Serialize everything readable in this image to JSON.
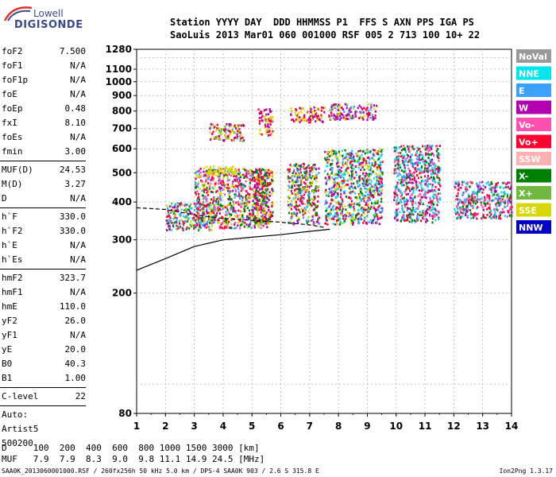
{
  "logo": {
    "line1": "Lowell",
    "line2": "DIGISONDE"
  },
  "header": {
    "line1": "Station YYYY DAY  DDD HHMMSS P1  FFS S AXN PPS IGA PS",
    "line2": "SaoLuis 2013 Mar01 060 001000 RSF 005 2 713 100 10+ 22"
  },
  "params": [
    {
      "label": "foF2",
      "value": "7.500"
    },
    {
      "label": "foF1",
      "value": "N/A"
    },
    {
      "label": "foF1p",
      "value": "N/A"
    },
    {
      "label": "foE",
      "value": "N/A"
    },
    {
      "label": "foEp",
      "value": "0.48"
    },
    {
      "label": "fxI",
      "value": "8.10"
    },
    {
      "label": "foEs",
      "value": "N/A"
    },
    {
      "label": "fmin",
      "value": "3.00"
    },
    {
      "sep": true
    },
    {
      "label": "MUF(D)",
      "value": "24.53"
    },
    {
      "label": "M(D)",
      "value": "3.27"
    },
    {
      "label": "D",
      "value": "N/A"
    },
    {
      "sep": true
    },
    {
      "label": "h`F",
      "value": "330.0"
    },
    {
      "label": "h`F2",
      "value": "330.0"
    },
    {
      "label": "h`E",
      "value": "N/A"
    },
    {
      "label": "h`Es",
      "value": "N/A"
    },
    {
      "sep": true
    },
    {
      "label": "hmF2",
      "value": "323.7"
    },
    {
      "label": "hmF1",
      "value": "N/A"
    },
    {
      "label": "hmE",
      "value": "110.0"
    },
    {
      "label": "yF2",
      "value": "26.0"
    },
    {
      "label": "yF1",
      "value": "N/A"
    },
    {
      "label": "yE",
      "value": "20.0"
    },
    {
      "label": "B0",
      "value": "40.3"
    },
    {
      "label": "B1",
      "value": "1.00"
    },
    {
      "sep": true
    },
    {
      "label": "C-level",
      "value": "22"
    },
    {
      "sep": true
    },
    {
      "label": "Auto:",
      "value": ""
    },
    {
      "label": "Artist5",
      "value": ""
    },
    {
      "label": "500200",
      "value": ""
    }
  ],
  "colors": {
    "NoVal": "#999999",
    "NNE": "#00e5ee",
    "E": "#3ca0ff",
    "W": "#b000b0",
    "Vo-": "#ff50b0",
    "Vo+": "#ff0030",
    "SSW": "#ffb0b0",
    "X-": "#008000",
    "X+": "#70b840",
    "SSE": "#d8d800",
    "NNW": "#0000c8"
  },
  "chart_data": {
    "type": "scatter",
    "title": "",
    "xlabel": "",
    "ylabel": "",
    "xlim": [
      1,
      14
    ],
    "ylim": [
      80,
      1280
    ],
    "yscale": "log",
    "x_ticks": [
      1,
      2,
      3,
      4,
      5,
      6,
      7,
      8,
      9,
      10,
      11,
      12,
      13,
      14
    ],
    "y_ticks": [
      80,
      200,
      300,
      400,
      500,
      600,
      700,
      800,
      900,
      1000,
      1100,
      1280
    ],
    "grid": true,
    "legend": [
      "NoVal",
      "NNE",
      "E",
      "W",
      "Vo-",
      "Vo+",
      "SSW",
      "X-",
      "X+",
      "SSE",
      "NNW"
    ],
    "legend_position": "right",
    "echo_regions": [
      {
        "x": [
          2.0,
          3.7
        ],
        "y": [
          325,
          400
        ],
        "colors": [
          "W",
          "X-",
          "Vo+",
          "SSE",
          "E",
          "NNE",
          "X+"
        ]
      },
      {
        "x": [
          3.0,
          5.5
        ],
        "y": [
          330,
          520
        ],
        "colors": [
          "W",
          "Vo+",
          "X-",
          "SSE",
          "E",
          "Vo-"
        ]
      },
      {
        "x": [
          3.3,
          4.4
        ],
        "y": [
          495,
          530
        ],
        "colors": [
          "SSE"
        ]
      },
      {
        "x": [
          5.0,
          5.7
        ],
        "y": [
          340,
          520
        ],
        "colors": [
          "W",
          "SSE",
          "Vo+",
          "X-"
        ]
      },
      {
        "x": [
          6.2,
          7.3
        ],
        "y": [
          340,
          540
        ],
        "colors": [
          "Vo+",
          "W",
          "SSE",
          "X-",
          "E"
        ]
      },
      {
        "x": [
          7.5,
          9.5
        ],
        "y": [
          340,
          600
        ],
        "colors": [
          "Vo+",
          "W",
          "SSE",
          "X-",
          "E",
          "NNE"
        ]
      },
      {
        "x": [
          9.9,
          11.5
        ],
        "y": [
          345,
          620
        ],
        "colors": [
          "W",
          "Vo+",
          "X-",
          "E",
          "NNE",
          "Vo-"
        ]
      },
      {
        "x": [
          12.0,
          14.0
        ],
        "y": [
          355,
          470
        ],
        "colors": [
          "W",
          "NNE",
          "Vo+",
          "X-",
          "E",
          "Vo-"
        ]
      },
      {
        "x": [
          3.5,
          4.7
        ],
        "y": [
          640,
          730
        ],
        "colors": [
          "W",
          "Vo+",
          "SSE",
          "X+"
        ]
      },
      {
        "x": [
          5.2,
          5.7
        ],
        "y": [
          670,
          820
        ],
        "colors": [
          "W",
          "SSE",
          "Vo+"
        ]
      },
      {
        "x": [
          6.3,
          7.5
        ],
        "y": [
          740,
          830
        ],
        "colors": [
          "SSE",
          "W",
          "Vo+"
        ]
      },
      {
        "x": [
          7.6,
          9.3
        ],
        "y": [
          755,
          850
        ],
        "colors": [
          "W",
          "E",
          "SSE",
          "Vo+"
        ]
      }
    ],
    "profile_line": [
      [
        1.0,
        238
      ],
      [
        2.0,
        260
      ],
      [
        3.0,
        285
      ],
      [
        4.0,
        300
      ],
      [
        5.0,
        306
      ],
      [
        6.0,
        312
      ],
      [
        7.0,
        320
      ],
      [
        7.7,
        325
      ]
    ],
    "dashed_line": [
      [
        1.0,
        383
      ],
      [
        2.0,
        378
      ],
      [
        3.0,
        363
      ],
      [
        4.0,
        353
      ],
      [
        5.0,
        348
      ],
      [
        6.0,
        343
      ],
      [
        7.0,
        336
      ],
      [
        7.5,
        330
      ]
    ]
  },
  "muf_table": {
    "d_label": "D",
    "d_values": [
      "100",
      "200",
      "400",
      "600",
      "800",
      "1000",
      "1500",
      "3000"
    ],
    "d_unit": "[km]",
    "muf_label": "MUF",
    "muf_values": [
      "7.9",
      "7.9",
      "8.3",
      "9.0",
      "9.8",
      "11.1",
      "14.9",
      "24.5"
    ],
    "muf_unit": "[MHz]"
  },
  "footer": "SAA0K_2013060001000.RSF / 260fx256h 50 kHz 5.0 km / DPS-4 SAA0K 903 / 2.6 S 315.8 E",
  "version": "Ion2Png 1.3.17"
}
